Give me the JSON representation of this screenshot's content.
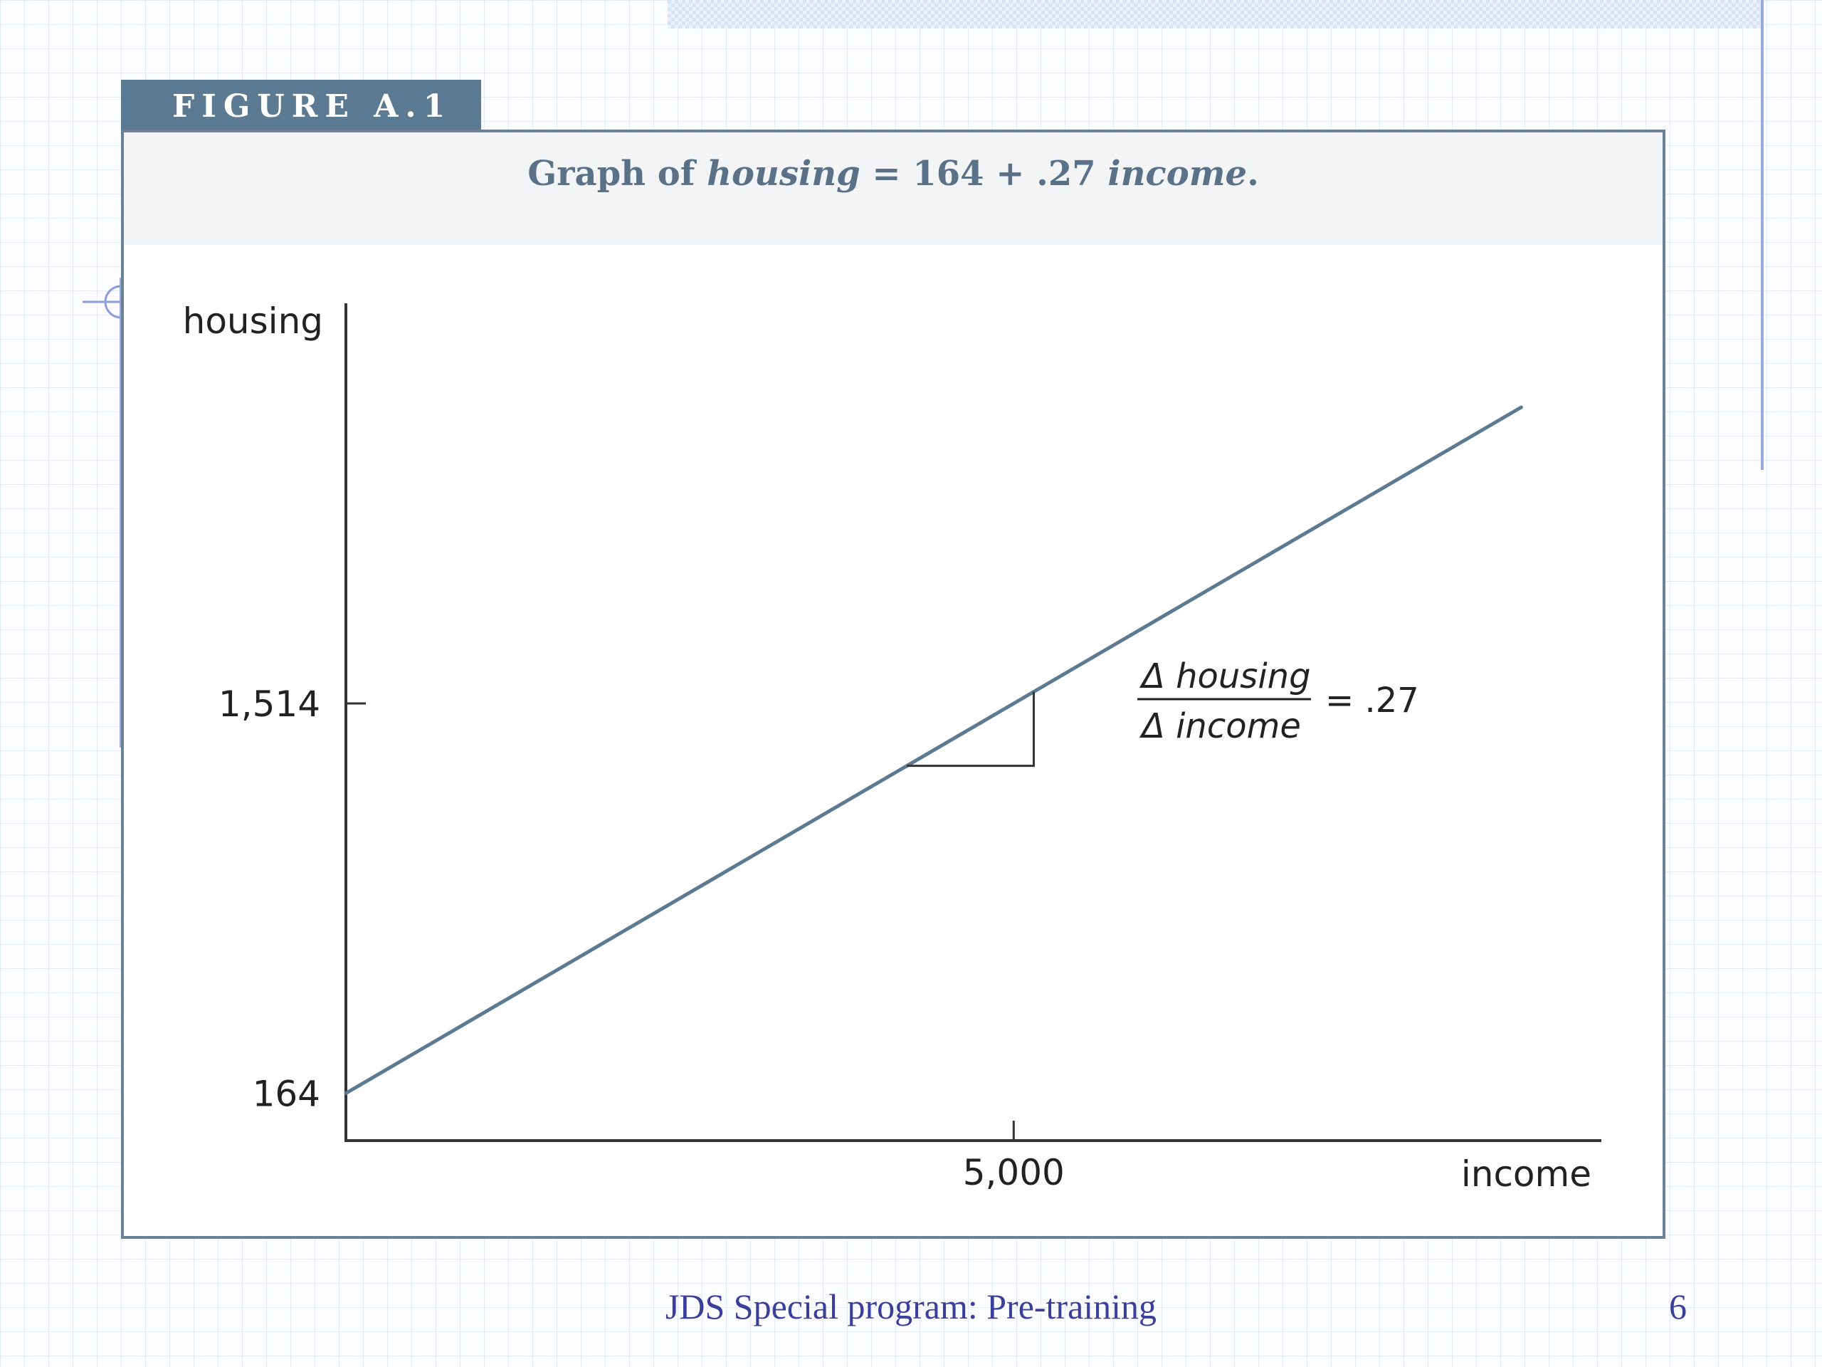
{
  "figure": {
    "tab_label": "FIGURE A.1",
    "caption": {
      "prefix": "Graph of ",
      "y_var": "housing",
      "middle": " = 164 + .27 ",
      "x_var": "income",
      "suffix": "."
    }
  },
  "footer": {
    "text": "JDS Special program: Pre-training",
    "page_number": "6"
  },
  "chart_data": {
    "type": "line",
    "equation": "housing = 164 + .27 income",
    "xlabel": "income",
    "ylabel": "housing",
    "intercept": 164,
    "slope": 0.27,
    "xlim": [
      0,
      9400
    ],
    "ylim": [
      0,
      2900
    ],
    "x_ticks": [
      {
        "value": 5000,
        "label": "5,000"
      }
    ],
    "y_ticks": [
      {
        "value": 164,
        "label": "164"
      },
      {
        "value": 1514,
        "label": "1,514"
      }
    ],
    "series": [
      {
        "x": [
          0,
          8800
        ],
        "y": [
          164,
          2540
        ]
      }
    ],
    "slope_annotation": {
      "numerator": "Δ housing",
      "denominator": "Δ income",
      "value": "= .27",
      "triangle_x": [
        4200,
        5150
      ]
    },
    "colors": {
      "line": "#5d7a93",
      "axis": "#333333",
      "text": "#222222"
    }
  }
}
